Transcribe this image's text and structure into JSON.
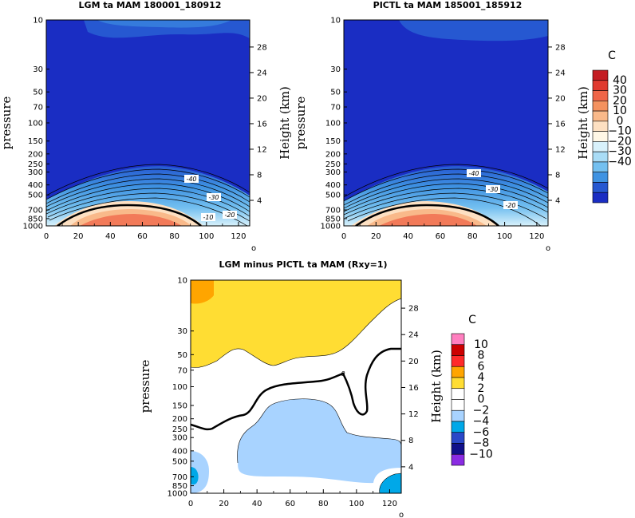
{
  "figure": {
    "title_panels": [
      "LGM ta MAM 180001_180912",
      "PICTL ta MAM 185001_185912",
      "LGM minus PICTL ta MAM (Rxy=1)"
    ]
  },
  "chart_data": [
    {
      "type": "heatmap",
      "title": "LGM ta MAM 180001_180912",
      "ylabel": "pressure",
      "ylabel_right": "Height (km)",
      "xlabel_unit": "o",
      "x_ticks": [
        0,
        20,
        40,
        60,
        80,
        100,
        120
      ],
      "xlim": [
        0,
        127
      ],
      "y_ticks": [
        10,
        30,
        50,
        70,
        100,
        150,
        200,
        250,
        300,
        400,
        500,
        700,
        850,
        1000
      ],
      "height_ticks": [
        4,
        8,
        12,
        16,
        20,
        24,
        28
      ],
      "contour_labels": [
        "-40",
        "-30",
        "-20",
        "-10"
      ],
      "colorbar_unit": "C",
      "colorbar_ticks": [
        "40",
        "30",
        "20",
        "10",
        "0",
        "−10",
        "−20",
        "−30",
        "−40"
      ],
      "colors": [
        "#c41d23",
        "#e03a2f",
        "#ef6548",
        "#f4925f",
        "#f9b98a",
        "#fde0c2",
        "#fff7e6",
        "#d8f1fb",
        "#a9dcf6",
        "#74c0f0",
        "#3f93e2",
        "#2658d1",
        "#1a2dc3"
      ]
    },
    {
      "type": "heatmap",
      "title": "PICTL ta MAM 185001_185912",
      "ylabel": "pressure",
      "ylabel_right": "Height (km)",
      "xlabel_unit": "o",
      "x_ticks": [
        0,
        20,
        40,
        60,
        80,
        100,
        120
      ],
      "xlim": [
        0,
        127
      ],
      "y_ticks": [
        10,
        30,
        50,
        70,
        100,
        150,
        200,
        250,
        300,
        400,
        500,
        700,
        850,
        1000
      ],
      "height_ticks": [
        4,
        8,
        12,
        16,
        20,
        24,
        28
      ],
      "contour_labels": [
        "-40",
        "-30",
        "-20"
      ]
    },
    {
      "type": "heatmap",
      "title": "LGM minus PICTL ta MAM (Rxy=1)",
      "ylabel": "pressure",
      "ylabel_right": "Height (km)",
      "xlabel_unit": "o",
      "x_ticks": [
        0,
        20,
        40,
        60,
        80,
        100,
        120
      ],
      "xlim": [
        0,
        127
      ],
      "y_ticks": [
        10,
        30,
        50,
        70,
        100,
        150,
        200,
        250,
        300,
        400,
        500,
        700,
        850,
        1000
      ],
      "height_ticks": [
        4,
        8,
        12,
        16,
        20,
        24,
        28
      ],
      "contour_labels": [
        "0"
      ],
      "colorbar_unit": "C",
      "colorbar_ticks": [
        "10",
        "8",
        "6",
        "4",
        "2",
        "0",
        "−2",
        "−4",
        "−6",
        "−8",
        "−10"
      ],
      "colors": [
        "#ff7fbf",
        "#cc0000",
        "#ff2a2a",
        "#ffa500",
        "#ffdd33",
        "#ffffff",
        "#ffffff",
        "#a8d3ff",
        "#00a8e8",
        "#2a48c8",
        "#10108a",
        "#8a2be2"
      ]
    }
  ]
}
